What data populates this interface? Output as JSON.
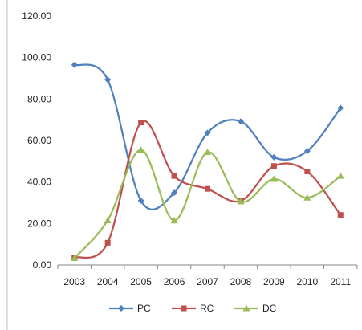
{
  "chart_data": {
    "type": "line",
    "title": "",
    "xlabel": "",
    "ylabel": "",
    "categories": [
      "2003",
      "2004",
      "2005",
      "2006",
      "2007",
      "2008",
      "2009",
      "2010",
      "2011"
    ],
    "ylim": [
      0,
      120
    ],
    "yticks": [
      "0.00",
      "20.00",
      "40.00",
      "60.00",
      "80.00",
      "100.00",
      "120.00"
    ],
    "grid": false,
    "smooth": true,
    "legend_position": "bottom",
    "series": [
      {
        "name": "PC",
        "color": "#4F81BD",
        "marker": "diamond",
        "values": [
          96.5,
          89.3,
          31.0,
          34.8,
          63.7,
          69.2,
          51.9,
          54.9,
          75.7
        ]
      },
      {
        "name": "RC",
        "color": "#C0504D",
        "marker": "square",
        "values": [
          3.6,
          10.7,
          68.7,
          42.9,
          36.7,
          30.9,
          47.7,
          45.1,
          24.1
        ]
      },
      {
        "name": "DC",
        "color": "#9BBB59",
        "marker": "triangle",
        "values": [
          3.3,
          21.5,
          55.5,
          21.4,
          54.4,
          30.6,
          41.4,
          32.4,
          42.9
        ]
      }
    ]
  }
}
